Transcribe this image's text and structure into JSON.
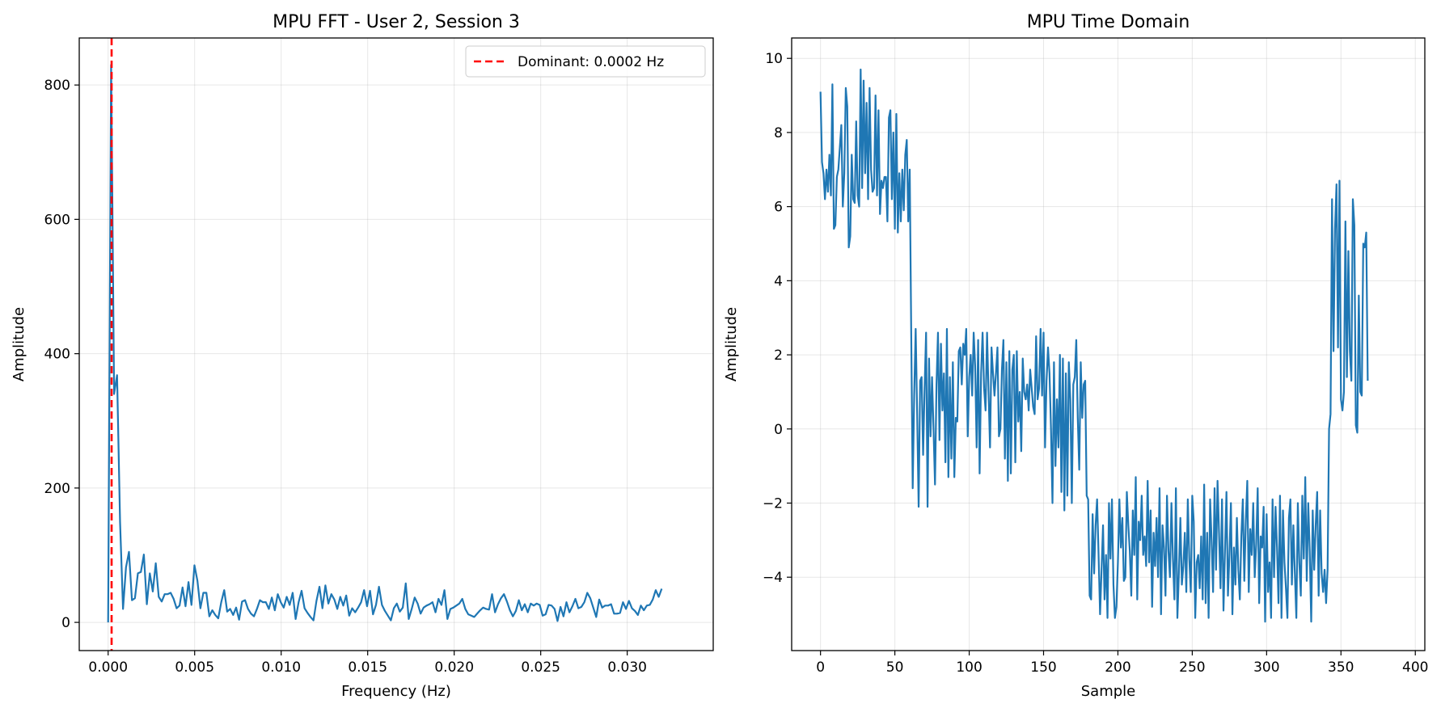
{
  "chart_data": [
    {
      "type": "line",
      "title": "MPU FFT - User 2, Session 3",
      "xlabel": "Frequency (Hz)",
      "ylabel": "Amplitude",
      "xlim": [
        -0.00167,
        0.03497
      ],
      "ylim": [
        -42,
        870
      ],
      "xticks": [
        0.0,
        0.005,
        0.01,
        0.015,
        0.02,
        0.025,
        0.03
      ],
      "xtick_labels": [
        "0.000",
        "0.005",
        "0.010",
        "0.015",
        "0.020",
        "0.025",
        "0.030"
      ],
      "yticks": [
        0,
        200,
        400,
        600,
        800
      ],
      "ytick_labels": [
        "0",
        "200",
        "400",
        "600",
        "800"
      ],
      "grid": true,
      "legend_position": "top-right",
      "x_step": 0.000172,
      "series": [
        {
          "color": "#1f77b4",
          "values": [
            0,
            830,
            340,
            368,
            150,
            20,
            82,
            105,
            33,
            36,
            73,
            75,
            101,
            27,
            73,
            46,
            88,
            38,
            31,
            42,
            42,
            44,
            35,
            21,
            25,
            52,
            24,
            60,
            26,
            85,
            62,
            21,
            44,
            44,
            9,
            18,
            11,
            6,
            30,
            48,
            16,
            20,
            11,
            22,
            4,
            31,
            33,
            20,
            13,
            9,
            20,
            33,
            30,
            30,
            20,
            37,
            18,
            42,
            30,
            22,
            38,
            26,
            44,
            5,
            30,
            47,
            21,
            14,
            8,
            3,
            32,
            53,
            21,
            55,
            28,
            42,
            34,
            20,
            38,
            25,
            40,
            10,
            21,
            15,
            22,
            30,
            48,
            24,
            47,
            12,
            26,
            53,
            26,
            17,
            10,
            3,
            21,
            28,
            16,
            22,
            58,
            5,
            20,
            37,
            28,
            13,
            22,
            25,
            27,
            30,
            15,
            35,
            26,
            48,
            5,
            20,
            22,
            25,
            28,
            35,
            20,
            12,
            10,
            8,
            13,
            18,
            22,
            20,
            19,
            42,
            15,
            27,
            36,
            42,
            31,
            18,
            9,
            17,
            33,
            18,
            27,
            15,
            28,
            25,
            28,
            26,
            10,
            12,
            26,
            25,
            20,
            2,
            23,
            9,
            30,
            15,
            24,
            35,
            21,
            23,
            30,
            44,
            36,
            22,
            8,
            34,
            22,
            25,
            25,
            27,
            13,
            13,
            14,
            30,
            20,
            32,
            21,
            17,
            11,
            25,
            18,
            25,
            26,
            34,
            48,
            38,
            50
          ]
        }
      ],
      "vline": {
        "x": 0.0002,
        "color": "#ff0000",
        "label": "Dominant: 0.0002 Hz"
      }
    },
    {
      "type": "line",
      "title": "MPU Time Domain",
      "xlabel": "Sample",
      "ylabel": "Amplitude",
      "xlim": [
        -19.4,
        406.4
      ],
      "ylim": [
        -5.98,
        10.55
      ],
      "xticks": [
        0,
        50,
        100,
        150,
        200,
        250,
        300,
        350,
        400
      ],
      "xtick_labels": [
        "0",
        "50",
        "100",
        "150",
        "200",
        "250",
        "300",
        "350",
        "400"
      ],
      "yticks": [
        -4,
        -2,
        0,
        2,
        4,
        6,
        8,
        10
      ],
      "ytick_labels": [
        "−4",
        "−2",
        "0",
        "2",
        "4",
        "6",
        "8",
        "10"
      ],
      "grid": true,
      "series": [
        {
          "color": "#1f77b4",
          "values": [
            9.1,
            7.2,
            6.9,
            6.2,
            7.0,
            6.4,
            7.4,
            6.3,
            9.3,
            5.4,
            5.5,
            6.8,
            7.0,
            7.6,
            8.2,
            6.0,
            6.9,
            9.2,
            8.7,
            4.9,
            5.2,
            7.4,
            6.2,
            6.1,
            8.3,
            6.3,
            6.0,
            9.7,
            6.5,
            9.4,
            6.9,
            8.8,
            6.2,
            9.2,
            7.0,
            6.4,
            6.5,
            9.0,
            6.3,
            8.6,
            5.8,
            6.7,
            6.5,
            6.8,
            6.8,
            5.6,
            8.4,
            8.6,
            6.2,
            8.0,
            5.4,
            8.5,
            5.3,
            6.9,
            5.6,
            7.0,
            5.9,
            7.4,
            7.8,
            5.6,
            7.0,
            2.6,
            -1.6,
            0.9,
            2.7,
            0.4,
            -2.1,
            1.3,
            1.4,
            -0.7,
            1.1,
            2.6,
            -2.1,
            1.9,
            -0.2,
            1.4,
            0.0,
            -1.5,
            1.2,
            2.6,
            -0.3,
            2.3,
            0.5,
            1.5,
            -0.9,
            2.7,
            -1.3,
            1.4,
            -0.8,
            1.8,
            -1.3,
            0.3,
            0.2,
            2.1,
            2.2,
            1.2,
            2.3,
            2.0,
            2.7,
            -0.2,
            1.4,
            2.0,
            0.9,
            2.6,
            1.7,
            -0.5,
            2.4,
            -1.2,
            1.5,
            2.6,
            1.1,
            0.5,
            2.6,
            1.0,
            -0.5,
            2.2,
            1.5,
            0.9,
            1.5,
            2.2,
            -0.2,
            0.0,
            1.6,
            2.4,
            -0.8,
            1.8,
            -1.4,
            2.1,
            -1.2,
            1.6,
            2.0,
            -0.9,
            2.1,
            0.2,
            1.0,
            -0.6,
            1.9,
            1.0,
            0.8,
            1.2,
            0.5,
            1.6,
            1.1,
            0.6,
            0.4,
            2.5,
            0.8,
            1.1,
            2.7,
            0.9,
            2.6,
            -0.5,
            1.3,
            2.2,
            1.5,
            0.0,
            -2.0,
            1.8,
            -1.0,
            0.8,
            -0.5,
            2.0,
            -1.7,
            1.9,
            -2.2,
            1.5,
            -1.8,
            1.8,
            0.8,
            -2.0,
            1.2,
            1.4,
            2.4,
            0.3,
            -1.1,
            1.8,
            0.3,
            1.2,
            1.3,
            -1.8,
            -1.9,
            -4.5,
            -4.6,
            -2.3,
            -3.9,
            -2.6,
            -1.9,
            -3.4,
            -5.0,
            -3.8,
            -2.6,
            -4.6,
            -3.4,
            -5.1,
            -2.0,
            -3.5,
            -1.9,
            -4.2,
            -5.1,
            -4.8,
            -3.6,
            -1.9,
            -3.2,
            -2.4,
            -4.1,
            -4.0,
            -1.7,
            -2.6,
            -3.3,
            -4.5,
            -2.2,
            -3.4,
            -1.3,
            -4.6,
            -2.5,
            -3.0,
            -1.8,
            -3.4,
            -2.9,
            -3.7,
            -1.4,
            -3.6,
            -2.2,
            -4.8,
            -2.8,
            -3.7,
            -2.4,
            -4.0,
            -1.6,
            -5.0,
            -2.6,
            -3.2,
            -4.5,
            -1.8,
            -3.3,
            -4.0,
            -2.0,
            -3.5,
            -4.6,
            -1.6,
            -5.1,
            -3.9,
            -2.4,
            -4.2,
            -3.7,
            -2.8,
            -4.4,
            -1.9,
            -3.5,
            -4.4,
            -1.8,
            -2.5,
            -5.1,
            -3.6,
            -3.4,
            -4.3,
            -2.9,
            -4.6,
            -1.5,
            -4.7,
            -2.8,
            -5.1,
            -1.9,
            -3.0,
            -4.4,
            -1.6,
            -3.8,
            -1.4,
            -2.8,
            -4.3,
            -1.9,
            -4.9,
            -3.3,
            -1.7,
            -4.5,
            -3.4,
            -2.0,
            -5.0,
            -3.2,
            -4.2,
            -2.4,
            -3.8,
            -4.6,
            -2.9,
            -1.9,
            -4.1,
            -2.5,
            -1.4,
            -4.4,
            -2.7,
            -3.4,
            -2.0,
            -4.0,
            -3.1,
            -1.6,
            -4.7,
            -2.9,
            -3.2,
            -2.1,
            -5.2,
            -2.3,
            -4.4,
            -3.6,
            -5.1,
            -1.9,
            -4.0,
            -2.1,
            -3.2,
            -4.7,
            -1.8,
            -5.1,
            -2.2,
            -3.6,
            -4.3,
            -5.1,
            -2.4,
            -1.9,
            -4.2,
            -2.6,
            -3.9,
            -5.1,
            -2.0,
            -3.6,
            -4.5,
            -1.8,
            -3.5,
            -1.3,
            -4.1,
            -2.0,
            -3.3,
            -5.2,
            -2.2,
            -3.8,
            -2.6,
            -1.7,
            -4.5,
            -2.2,
            -3.9,
            -4.4,
            -3.8,
            -4.7,
            -3.8,
            0.0,
            0.4,
            6.2,
            2.1,
            5.4,
            6.6,
            2.2,
            6.7,
            0.8,
            0.5,
            1.0,
            5.6,
            1.4,
            4.8,
            2.1,
            1.3,
            6.2,
            5.5,
            0.1,
            -0.1,
            3.6,
            1.0,
            0.9,
            5.0,
            4.9,
            5.3,
            1.3
          ]
        }
      ]
    }
  ]
}
